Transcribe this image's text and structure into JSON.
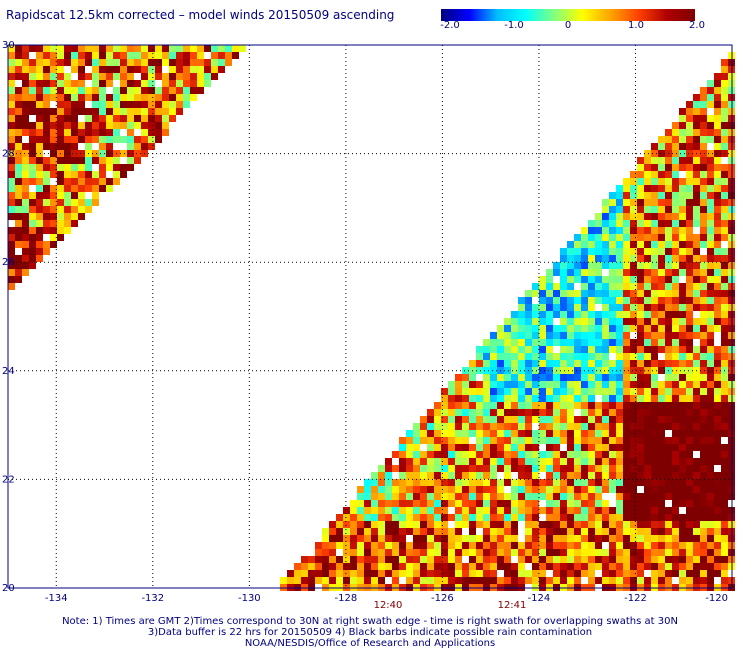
{
  "title": "Rapidscat 12.5km corrected – model winds 20150509 ascending",
  "colorbar": {
    "labels": [
      "-2.0",
      "-1.0",
      "0",
      "1.0",
      "2.0"
    ],
    "stops": [
      "#00007f",
      "#0000ff",
      "#00bfff",
      "#00ffff",
      "#80ff80",
      "#ffff00",
      "#ffa500",
      "#ff4000",
      "#b00000",
      "#7f0000"
    ]
  },
  "map": {
    "lon_range": [
      -135,
      -120
    ],
    "lat_range": [
      20,
      30
    ],
    "x_tick_labels": [
      "-134",
      "-132",
      "-130",
      "-128",
      "-126",
      "-124",
      "-122",
      "-120"
    ],
    "y_tick_labels": [
      "20",
      "22",
      "24",
      "26",
      "28",
      "30"
    ],
    "swath_times": [
      "12:40",
      "12:41"
    ]
  },
  "notes": [
    "Note: 1) Times are GMT 2)Times correspond to 30N at right swath edge - time is right swath for overlapping swaths at 30N",
    "3)Data buffer is 22 hrs for 20150509 4) Black barbs indicate possible rain contamination",
    "NOAA/NESDIS/Office of Research and Applications"
  ]
}
